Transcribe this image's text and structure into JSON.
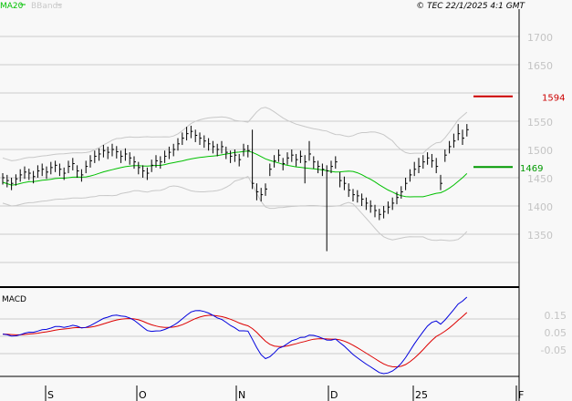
{
  "chart_data": {
    "type": "ohlc",
    "legend": [
      {
        "name": "MA20",
        "color": "#00c000"
      },
      {
        "name": "BBands",
        "color": "#c8c8c8"
      }
    ],
    "copyright": "© TEC 22/1/2025 4:1 GMT",
    "price_axis": {
      "ticks": [
        1700,
        1650,
        1550,
        1500,
        1450,
        1400,
        1350
      ],
      "grid": [
        1700,
        1650,
        1600,
        1550,
        1500,
        1450,
        1400,
        1350,
        1300
      ],
      "ylim": [
        1280,
        1705
      ]
    },
    "macd_panel": {
      "label": "MACD",
      "ticks": [
        "0.15",
        "0.05",
        "-0.05"
      ],
      "colors": {
        "macd": "#0000dd",
        "signal": "#dd0000"
      }
    },
    "x_ticks": [
      "S",
      "O",
      "N",
      "D",
      "25",
      "F"
    ],
    "markers": [
      {
        "label": "1594",
        "value": 1594,
        "color": "#cc0000"
      },
      {
        "label": "1469",
        "value": 1469,
        "color": "#009900"
      }
    ],
    "close": [
      1450,
      1445,
      1440,
      1448,
      1455,
      1460,
      1458,
      1452,
      1462,
      1465,
      1460,
      1468,
      1472,
      1465,
      1458,
      1470,
      1475,
      1462,
      1455,
      1470,
      1480,
      1488,
      1492,
      1498,
      1495,
      1500,
      1496,
      1488,
      1492,
      1485,
      1478,
      1468,
      1462,
      1458,
      1472,
      1480,
      1478,
      1488,
      1495,
      1500,
      1510,
      1520,
      1528,
      1532,
      1525,
      1520,
      1515,
      1510,
      1505,
      1500,
      1505,
      1495,
      1488,
      1490,
      1482,
      1500,
      1498,
      1440,
      1425,
      1420,
      1430,
      1465,
      1480,
      1490,
      1475,
      1485,
      1490,
      1482,
      1488,
      1478,
      1492,
      1478,
      1470,
      1465,
      1462,
      1470,
      1478,
      1445,
      1440,
      1428,
      1420,
      1418,
      1412,
      1405,
      1400,
      1392,
      1385,
      1390,
      1398,
      1405,
      1415,
      1425,
      1440,
      1455,
      1465,
      1470,
      1478,
      1485,
      1480,
      1470,
      1440,
      1490,
      1505,
      1515,
      1528,
      1520,
      1535
    ],
    "high": [
      1458,
      1455,
      1450,
      1456,
      1465,
      1470,
      1466,
      1462,
      1472,
      1475,
      1470,
      1478,
      1480,
      1475,
      1468,
      1480,
      1485,
      1472,
      1465,
      1480,
      1490,
      1498,
      1502,
      1508,
      1505,
      1510,
      1506,
      1498,
      1502,
      1495,
      1488,
      1478,
      1472,
      1468,
      1482,
      1490,
      1488,
      1498,
      1505,
      1510,
      1520,
      1530,
      1540,
      1542,
      1535,
      1530,
      1525,
      1520,
      1515,
      1510,
      1515,
      1505,
      1498,
      1500,
      1492,
      1510,
      1508,
      1535,
      1440,
      1432,
      1440,
      1475,
      1490,
      1500,
      1485,
      1495,
      1500,
      1492,
      1498,
      1490,
      1515,
      1488,
      1480,
      1475,
      1472,
      1480,
      1488,
      1460,
      1452,
      1440,
      1430,
      1428,
      1422,
      1415,
      1410,
      1402,
      1395,
      1400,
      1408,
      1415,
      1425,
      1435,
      1450,
      1465,
      1478,
      1485,
      1490,
      1495,
      1492,
      1485,
      1455,
      1500,
      1515,
      1528,
      1545,
      1535,
      1545
    ],
    "low": [
      1438,
      1433,
      1428,
      1436,
      1443,
      1448,
      1446,
      1440,
      1450,
      1453,
      1448,
      1456,
      1460,
      1453,
      1446,
      1458,
      1463,
      1450,
      1443,
      1458,
      1468,
      1476,
      1480,
      1486,
      1483,
      1488,
      1484,
      1476,
      1480,
      1473,
      1466,
      1456,
      1450,
      1446,
      1460,
      1468,
      1466,
      1476,
      1483,
      1488,
      1498,
      1508,
      1516,
      1520,
      1513,
      1508,
      1503,
      1498,
      1493,
      1488,
      1493,
      1483,
      1476,
      1478,
      1470,
      1488,
      1486,
      1430,
      1410,
      1408,
      1418,
      1453,
      1468,
      1478,
      1463,
      1473,
      1478,
      1470,
      1476,
      1440,
      1480,
      1466,
      1458,
      1453,
      1320,
      1458,
      1466,
      1433,
      1428,
      1416,
      1408,
      1406,
      1400,
      1393,
      1388,
      1380,
      1375,
      1378,
      1386,
      1393,
      1403,
      1413,
      1428,
      1443,
      1453,
      1458,
      1466,
      1473,
      1468,
      1458,
      1428,
      1478,
      1493,
      1503,
      1516,
      1508,
      1523
    ]
  }
}
